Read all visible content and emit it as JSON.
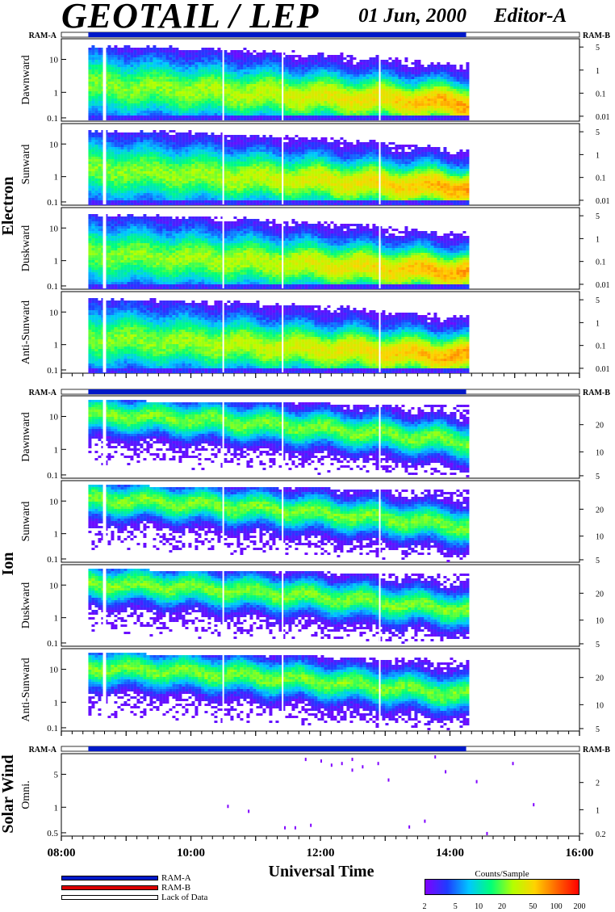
{
  "header": {
    "title": "GEOTAIL / LEP",
    "date": "01 Jun, 2000",
    "editor": "Editor-A"
  },
  "chart_data": {
    "type": "heatmap",
    "x_axis": {
      "title": "Universal Time",
      "range": [
        "08:00",
        "16:00"
      ],
      "tick_labels": [
        "08:00",
        "10:00",
        "12:00",
        "14:00",
        "16:00"
      ],
      "data_coverage": [
        "08:25",
        "14:15"
      ],
      "gaps": [
        "08:40",
        "10:30",
        "11:25",
        "12:55"
      ]
    },
    "ram_labels": {
      "left": "RAM-A",
      "right": "RAM-B"
    },
    "groups": [
      {
        "name": "Electron",
        "panels": [
          {
            "name": "Dawnward",
            "left_ticks": [
              "10",
              "1",
              "0.1"
            ],
            "right_ticks": [
              "5",
              "1",
              "0.1",
              "0.01"
            ]
          },
          {
            "name": "Sunward",
            "left_ticks": [
              "10",
              "1",
              "0.1"
            ],
            "right_ticks": [
              "5",
              "1",
              "0.1",
              "0.01"
            ]
          },
          {
            "name": "Duskward",
            "left_ticks": [
              "10",
              "1",
              "0.1"
            ],
            "right_ticks": [
              "5",
              "1",
              "0.1",
              "0.01"
            ]
          },
          {
            "name": "Anti-Sunward",
            "left_ticks": [
              "10",
              "1",
              "0.1"
            ],
            "right_ticks": [
              "5",
              "1",
              "0.1",
              "0.01"
            ]
          }
        ]
      },
      {
        "name": "Ion",
        "panels": [
          {
            "name": "Dawnward",
            "left_ticks": [
              "10",
              "1",
              "0.1"
            ],
            "right_ticks": [
              "20",
              "10",
              "5"
            ]
          },
          {
            "name": "Sunward",
            "left_ticks": [
              "10",
              "1",
              "0.1"
            ],
            "right_ticks": [
              "20",
              "10",
              "5"
            ]
          },
          {
            "name": "Duskward",
            "left_ticks": [
              "10",
              "1",
              "0.1"
            ],
            "right_ticks": [
              "20",
              "10",
              "5"
            ]
          },
          {
            "name": "Anti-Sunward",
            "left_ticks": [
              "10",
              "1",
              "0.1"
            ],
            "right_ticks": [
              "20",
              "10",
              "5"
            ]
          }
        ]
      },
      {
        "name": "Solar Wind",
        "panels": [
          {
            "name": "Omni.",
            "left_ticks": [
              "5",
              "1",
              "0.5"
            ],
            "right_ticks": [
              "2",
              "1",
              "0.2"
            ]
          }
        ]
      }
    ],
    "colorbar": {
      "title": "Counts/Sample",
      "ticks": [
        "2",
        "5",
        "10",
        "20",
        "50",
        "100",
        "200"
      ],
      "colors": [
        "#7f00ff",
        "#1e3cff",
        "#00c8ff",
        "#00ff78",
        "#b4ff00",
        "#ffd200",
        "#ff6400",
        "#ff0000"
      ]
    },
    "legend": [
      {
        "label": "RAM-A",
        "color": "#0019c8"
      },
      {
        "label": "RAM-B",
        "color": "#dc0000"
      },
      {
        "label": "Lack of Data",
        "color": "#ffffff"
      }
    ]
  }
}
